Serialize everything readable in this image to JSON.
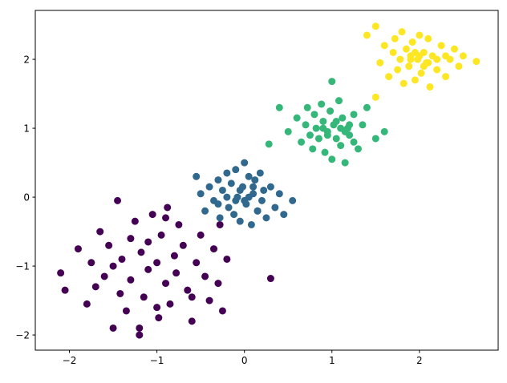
{
  "chart_data": {
    "type": "scatter",
    "xlim": [
      -2.39,
      2.9
    ],
    "ylim": [
      -2.22,
      2.71
    ],
    "xticks": [
      {
        "value": -2,
        "label": "−2"
      },
      {
        "value": -1,
        "label": "−1"
      },
      0,
      1,
      2
    ],
    "yticks": [
      {
        "value": -2,
        "label": "−2"
      },
      {
        "value": -1,
        "label": "−1"
      },
      0,
      1,
      2
    ],
    "grid": false,
    "series": [
      {
        "color": "#440154",
        "x": [
          -2.1,
          -2.05,
          -1.9,
          -1.8,
          -1.75,
          -1.7,
          -1.65,
          -1.6,
          -1.55,
          -1.5,
          -1.45,
          -1.42,
          -1.4,
          -1.35,
          -1.3,
          -1.3,
          -1.25,
          -1.2,
          -1.18,
          -1.15,
          -1.1,
          -1.05,
          -1.0,
          -0.98,
          -0.95,
          -0.9,
          -0.88,
          -0.85,
          -0.8,
          -0.78,
          -0.75,
          -0.7,
          -0.65,
          -0.6,
          -0.55,
          -0.5,
          -0.45,
          -0.4,
          -0.35,
          -0.3,
          -0.28,
          -0.25,
          -0.2,
          0.3,
          -1.2,
          -1.0,
          -0.6,
          -1.5,
          -0.9,
          -1.1
        ],
        "y": [
          -1.1,
          -1.35,
          -0.75,
          -1.55,
          -0.95,
          -1.3,
          -0.5,
          -1.15,
          -0.7,
          -1.9,
          -0.05,
          -1.4,
          -0.9,
          -1.65,
          -0.6,
          -1.2,
          -0.35,
          -2.0,
          -0.8,
          -1.45,
          -1.05,
          -0.25,
          -0.95,
          -1.75,
          -0.55,
          -1.25,
          -0.15,
          -1.55,
          -0.85,
          -1.1,
          -0.4,
          -0.7,
          -1.35,
          -1.8,
          -0.95,
          -0.55,
          -1.15,
          -1.5,
          -0.75,
          -1.25,
          -0.4,
          -1.65,
          -0.9,
          -1.18,
          -1.9,
          -1.6,
          -1.45,
          -1.0,
          -0.3,
          -0.65
        ]
      },
      {
        "color": "#31688e",
        "x": [
          -0.55,
          -0.5,
          -0.45,
          -0.4,
          -0.35,
          -0.3,
          -0.28,
          -0.25,
          -0.2,
          -0.18,
          -0.15,
          -0.12,
          -0.1,
          -0.08,
          -0.05,
          -0.02,
          0.0,
          0.02,
          0.05,
          0.08,
          0.1,
          0.12,
          0.15,
          0.18,
          0.2,
          0.22,
          0.25,
          0.3,
          0.35,
          0.4,
          0.45,
          0.55,
          -0.3,
          -0.1,
          0.05,
          0.15,
          -0.2,
          0.0,
          0.1,
          -0.05
        ],
        "y": [
          0.3,
          0.05,
          -0.2,
          0.15,
          -0.05,
          0.25,
          -0.3,
          0.1,
          0.35,
          -0.15,
          0.2,
          -0.25,
          0.4,
          0.0,
          -0.35,
          0.15,
          0.5,
          -0.1,
          0.3,
          -0.4,
          0.05,
          0.25,
          -0.2,
          0.35,
          -0.05,
          0.1,
          -0.3,
          0.15,
          -0.15,
          0.05,
          -0.25,
          -0.05,
          -0.1,
          -0.05,
          0.0,
          -0.2,
          0.0,
          -0.05,
          0.15,
          0.1
        ]
      },
      {
        "color": "#35b779",
        "x": [
          0.4,
          0.5,
          0.6,
          0.65,
          0.7,
          0.72,
          0.75,
          0.78,
          0.8,
          0.82,
          0.85,
          0.88,
          0.9,
          0.92,
          0.95,
          0.98,
          1.0,
          1.02,
          1.05,
          1.08,
          1.1,
          1.12,
          1.15,
          1.18,
          1.2,
          1.25,
          1.3,
          1.35,
          1.4,
          1.5,
          1.6,
          1.0,
          0.28,
          0.9,
          1.1,
          1.05,
          0.95,
          1.15,
          1.2,
          1.25
        ],
        "y": [
          1.3,
          0.95,
          1.15,
          0.8,
          1.05,
          1.3,
          0.9,
          0.7,
          1.2,
          1.0,
          0.85,
          1.35,
          1.1,
          0.65,
          0.95,
          1.25,
          0.55,
          1.05,
          0.85,
          1.4,
          0.75,
          1.15,
          0.5,
          1.0,
          0.9,
          1.2,
          0.7,
          1.05,
          1.3,
          0.85,
          0.95,
          1.68,
          0.77,
          1.0,
          1.0,
          1.1,
          0.9,
          0.95,
          1.05,
          0.8
        ]
      },
      {
        "color": "#fde725",
        "x": [
          1.4,
          1.5,
          1.55,
          1.6,
          1.65,
          1.7,
          1.72,
          1.75,
          1.78,
          1.8,
          1.82,
          1.85,
          1.88,
          1.9,
          1.92,
          1.95,
          1.98,
          2.0,
          2.02,
          2.05,
          2.08,
          2.1,
          2.12,
          2.15,
          2.2,
          2.25,
          2.3,
          2.35,
          2.4,
          2.45,
          2.5,
          2.65,
          1.5,
          1.9,
          2.0,
          2.1,
          1.95,
          2.05,
          2.2,
          2.3
        ],
        "y": [
          2.35,
          2.48,
          1.95,
          2.2,
          1.75,
          2.1,
          2.3,
          1.85,
          2.0,
          2.4,
          1.65,
          2.15,
          1.9,
          2.05,
          2.25,
          1.7,
          2.0,
          2.35,
          1.8,
          2.1,
          1.95,
          2.3,
          1.6,
          2.05,
          1.85,
          2.2,
          1.75,
          2.0,
          2.15,
          1.9,
          2.05,
          1.97,
          1.45,
          2.0,
          2.05,
          1.95,
          2.1,
          1.9,
          2.0,
          2.05
        ]
      }
    ]
  }
}
